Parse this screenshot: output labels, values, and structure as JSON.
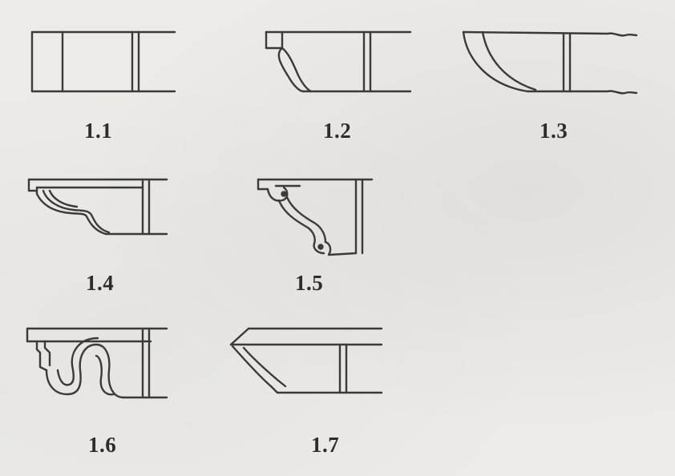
{
  "figures": [
    {
      "id": "1.1",
      "label": "1.1"
    },
    {
      "id": "1.2",
      "label": "1.2"
    },
    {
      "id": "1.3",
      "label": "1.3"
    },
    {
      "id": "1.4",
      "label": "1.4"
    },
    {
      "id": "1.5",
      "label": "1.5"
    },
    {
      "id": "1.6",
      "label": "1.6"
    },
    {
      "id": "1.7",
      "label": "1.7"
    }
  ],
  "colors": {
    "ink": "#3a3a3a",
    "paper": "#ecebe8"
  }
}
